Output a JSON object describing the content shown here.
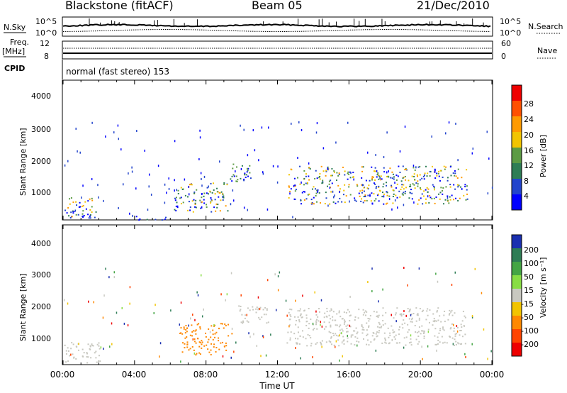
{
  "header": {
    "title": "Blackstone (fitACF)",
    "beam": "Beam 05",
    "date": "21/Dec/2010"
  },
  "top_panels": {
    "nsky_label": "N.Sky",
    "nsky_ticks": [
      "10^5",
      "10^0"
    ],
    "nsearch_label": "N.Search",
    "nsearch_ticks": [
      "10^5",
      "10^0"
    ],
    "freq_label": "Freq.",
    "freq_unit": "[MHz]",
    "freq_ticks": [
      "12",
      "8"
    ],
    "nave_label": "Nave",
    "nave_ticks": [
      "60",
      "0"
    ],
    "cpid_label": "CPID",
    "cpid_text": "normal (fast stereo) 153"
  },
  "chart_data": [
    {
      "type": "heatmap",
      "panel": "power",
      "ylabel": "Slant Range [km]",
      "xlabel": "",
      "x_range_hours": [
        0,
        24
      ],
      "ylim": [
        180,
        4600
      ],
      "y_ticks": [
        "1000",
        "2000",
        "3000",
        "4000"
      ],
      "colorbar_label": "Power [dB]",
      "colorbar_ticks": [
        "4",
        "8",
        "12",
        "16",
        "20",
        "24",
        "28"
      ],
      "colorbar_colors": [
        "#0000ff",
        "#2244cc",
        "#2e7d55",
        "#5c9b44",
        "#f2c400",
        "#ff9a00",
        "#ff5000",
        "#ee0000"
      ],
      "echo_regions_hours_km": [
        {
          "t0": 0.0,
          "t1": 1.6,
          "r0": 300,
          "r1": 900,
          "level": 6
        },
        {
          "t0": 0.2,
          "t1": 2.1,
          "r0": 250,
          "r1": 480,
          "level": 3
        },
        {
          "t0": 4.0,
          "t1": 6.0,
          "r0": 200,
          "r1": 320,
          "level": 3
        },
        {
          "t0": 6.2,
          "t1": 9.2,
          "r0": 450,
          "r1": 1400,
          "level": 6
        },
        {
          "t0": 9.2,
          "t1": 10.6,
          "r0": 1400,
          "r1": 2000,
          "level": 4
        },
        {
          "t0": 12.6,
          "t1": 22.6,
          "r0": 700,
          "r1": 1900,
          "level": 6
        }
      ]
    },
    {
      "type": "heatmap",
      "panel": "velocity",
      "ylabel": "Slant Range [km]",
      "xlabel": "Time UT",
      "x_range_hours": [
        0,
        24
      ],
      "ylim": [
        180,
        4600
      ],
      "y_ticks": [
        "1000",
        "2000",
        "3000",
        "4000"
      ],
      "x_ticks": [
        "00:00",
        "04:00",
        "08:00",
        "12:00",
        "16:00",
        "20:00",
        "00:00"
      ],
      "colorbar_label": "Velocity [m s⁻¹]",
      "colorbar_ticks": [
        "200",
        "100",
        "50",
        "15",
        "-15",
        "-50",
        "-100",
        "-200"
      ],
      "colorbar_colors": [
        "#1a2fb0",
        "#2e7d55",
        "#44a544",
        "#88dd44",
        "#c8c8c0",
        "#f2c400",
        "#ff8800",
        "#ff4400",
        "#ee0000"
      ],
      "echo_regions_hours_km": [
        {
          "t0": 0.0,
          "t1": 2.2,
          "r0": 250,
          "r1": 900,
          "velocity": "-15..15"
        },
        {
          "t0": 6.5,
          "t1": 9.5,
          "r0": 500,
          "r1": 1500,
          "velocity": "-50..-100"
        },
        {
          "t0": 9.8,
          "t1": 11.5,
          "r0": 1500,
          "r1": 2100,
          "velocity": "-15..15"
        },
        {
          "t0": 12.5,
          "t1": 22.5,
          "r0": 800,
          "r1": 2000,
          "velocity": "-15..15"
        }
      ]
    }
  ],
  "colors": {
    "background": "#ffffff",
    "frame": "#000000"
  }
}
